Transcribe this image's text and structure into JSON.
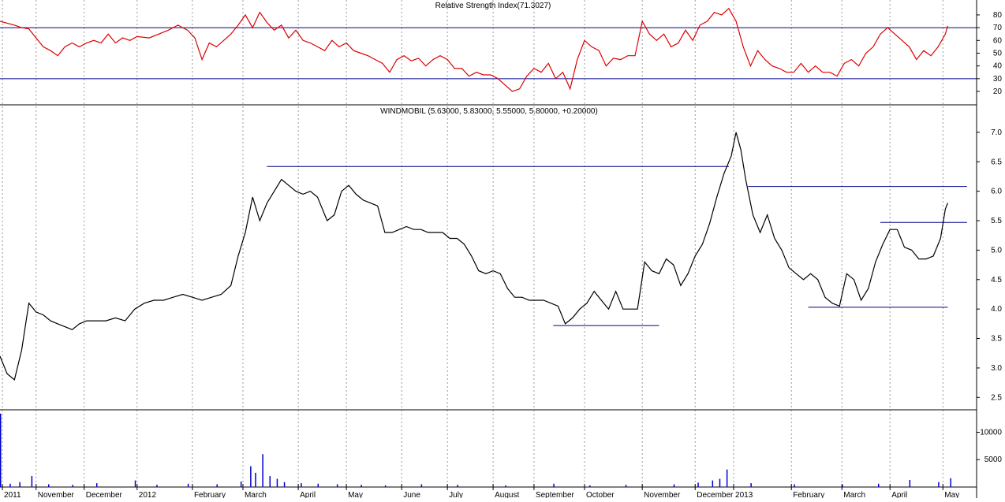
{
  "chart_data": [
    {
      "type": "line",
      "title": "Relative Strength Index(71.3027)",
      "xlim": [
        0,
        406
      ],
      "ylim": [
        9.5,
        91.7
      ],
      "yticks": [
        20,
        30,
        40,
        50,
        60,
        70,
        80
      ],
      "levels": [
        30,
        70
      ],
      "level_color": "#00008b",
      "x": [
        0,
        6,
        9,
        12,
        15,
        18,
        21,
        24,
        27,
        30,
        33,
        36,
        39,
        42,
        45,
        48,
        51,
        54,
        57,
        62,
        66,
        70,
        74,
        78,
        81,
        84,
        87,
        90,
        93,
        96,
        99,
        102,
        105,
        108,
        111,
        114,
        117,
        120,
        123,
        126,
        129,
        132,
        135,
        138,
        141,
        144,
        147,
        150,
        153,
        156,
        159,
        162,
        165,
        168,
        171,
        174,
        177,
        180,
        183,
        186,
        189,
        192,
        195,
        198,
        201,
        204,
        207,
        210,
        213,
        216,
        219,
        222,
        225,
        228,
        231,
        234,
        237,
        240,
        243,
        246,
        249,
        252,
        255,
        258,
        261,
        264,
        267,
        270,
        273,
        276,
        279,
        282,
        285,
        288,
        291,
        294,
        297,
        300,
        303,
        306,
        309,
        312,
        315,
        318,
        321,
        324,
        327,
        330,
        333,
        336,
        339,
        342,
        345,
        348,
        351,
        354,
        357,
        360,
        363,
        366,
        369,
        372,
        375,
        378,
        381,
        384,
        387,
        390,
        393,
        394
      ],
      "series": [
        {
          "color": "#dd0000",
          "values": [
            75,
            72,
            70,
            69,
            62,
            55,
            52,
            48,
            55,
            58,
            55,
            58,
            60,
            58,
            65,
            58,
            62,
            60,
            63,
            62,
            65,
            68,
            72,
            68,
            62,
            45,
            58,
            55,
            60,
            65,
            72,
            80,
            70,
            82,
            74,
            68,
            72,
            62,
            68,
            60,
            58,
            55,
            52,
            60,
            55,
            58,
            52,
            50,
            48,
            45,
            42,
            35,
            45,
            48,
            44,
            46,
            40,
            45,
            48,
            45,
            38,
            38,
            32,
            35,
            33,
            33,
            30,
            25,
            20,
            22,
            32,
            38,
            35,
            42,
            30,
            35,
            22,
            45,
            60,
            55,
            52,
            40,
            46,
            45,
            48,
            48,
            75,
            65,
            60,
            65,
            55,
            58,
            68,
            60,
            72,
            75,
            82,
            80,
            85,
            75,
            55,
            40,
            52,
            45,
            40,
            38,
            35,
            35,
            42,
            35,
            40,
            35,
            35,
            32,
            42,
            45,
            40,
            50,
            55,
            65,
            70,
            65,
            60,
            55,
            45,
            52,
            48,
            55,
            65,
            71.3
          ]
        }
      ]
    },
    {
      "type": "line",
      "title": "WINDMOBIL (5.63000, 5.83000, 5.55000, 5.80000, +0.20000)",
      "xlim": [
        0,
        406
      ],
      "ylim": [
        2.29,
        7.44
      ],
      "yticks": [
        2.5,
        {
          "value": 3,
          "label": "3.0"
        },
        3.5,
        {
          "value": 4,
          "label": "4.0"
        },
        4.5,
        {
          "value": 5,
          "label": "5.0"
        },
        5.5,
        {
          "value": 6,
          "label": "6.0"
        },
        6.5,
        {
          "value": 7,
          "label": "7.0"
        }
      ],
      "level_color": "#00008b",
      "segments": [
        {
          "y": 6.42,
          "x": [
            111,
            303
          ]
        },
        {
          "y": 3.72,
          "x": [
            230,
            274
          ]
        },
        {
          "y": 6.08,
          "x": [
            311,
            402
          ]
        },
        {
          "y": 5.47,
          "x": [
            366,
            402
          ]
        },
        {
          "y": 4.03,
          "x": [
            336,
            394
          ]
        }
      ],
      "x": [
        0,
        3,
        6,
        9,
        12,
        15,
        18,
        21,
        24,
        27,
        30,
        33,
        36,
        40,
        44,
        48,
        52,
        56,
        60,
        64,
        68,
        72,
        76,
        80,
        84,
        88,
        92,
        96,
        99,
        102,
        105,
        108,
        111,
        114,
        117,
        120,
        123,
        126,
        129,
        132,
        136,
        139,
        142,
        145,
        148,
        151,
        154,
        157,
        160,
        163,
        166,
        169,
        172,
        175,
        178,
        181,
        184,
        187,
        190,
        193,
        196,
        199,
        202,
        205,
        208,
        211,
        214,
        217,
        220,
        223,
        226,
        229,
        232,
        235,
        238,
        241,
        244,
        247,
        250,
        253,
        256,
        259,
        262,
        265,
        268,
        271,
        274,
        277,
        280,
        283,
        286,
        289,
        292,
        295,
        298,
        301,
        304,
        306,
        308,
        310,
        313,
        316,
        319,
        322,
        325,
        328,
        331,
        334,
        337,
        340,
        343,
        346,
        349,
        352,
        355,
        358,
        361,
        364,
        367,
        370,
        373,
        376,
        379,
        382,
        385,
        388,
        391,
        393,
        394
      ],
      "series": [
        {
          "color": "#000000",
          "values": [
            3.2,
            2.9,
            2.8,
            3.3,
            4.1,
            3.95,
            3.9,
            3.8,
            3.75,
            3.7,
            3.65,
            3.75,
            3.8,
            3.8,
            3.8,
            3.85,
            3.8,
            4.0,
            4.1,
            4.15,
            4.15,
            4.2,
            4.25,
            4.2,
            4.15,
            4.2,
            4.25,
            4.4,
            4.9,
            5.3,
            5.9,
            5.5,
            5.8,
            6.0,
            6.2,
            6.1,
            6.0,
            5.95,
            6.0,
            5.9,
            5.5,
            5.6,
            6.0,
            6.1,
            5.95,
            5.85,
            5.8,
            5.75,
            5.3,
            5.3,
            5.35,
            5.4,
            5.35,
            5.35,
            5.3,
            5.3,
            5.3,
            5.2,
            5.2,
            5.1,
            4.9,
            4.65,
            4.6,
            4.65,
            4.6,
            4.35,
            4.2,
            4.2,
            4.15,
            4.15,
            4.15,
            4.1,
            4.05,
            3.75,
            3.85,
            4.0,
            4.1,
            4.3,
            4.15,
            4.0,
            4.3,
            4.0,
            4.0,
            4.0,
            4.8,
            4.65,
            4.6,
            4.85,
            4.75,
            4.4,
            4.6,
            4.9,
            5.1,
            5.45,
            5.9,
            6.3,
            6.6,
            7.0,
            6.7,
            6.2,
            5.6,
            5.3,
            5.6,
            5.2,
            5.0,
            4.7,
            4.6,
            4.5,
            4.6,
            4.5,
            4.2,
            4.1,
            4.05,
            4.6,
            4.5,
            4.15,
            4.35,
            4.8,
            5.1,
            5.35,
            5.35,
            5.05,
            5.0,
            4.85,
            4.85,
            4.9,
            5.2,
            5.7,
            5.8
          ]
        }
      ]
    },
    {
      "type": "bar",
      "xlim": [
        0,
        406
      ],
      "ylim": [
        0,
        14100
      ],
      "yticks": [
        5000,
        10000
      ],
      "xticks": [
        {
          "value": 1,
          "label": "2011"
        },
        {
          "value": 15,
          "label": "November"
        },
        {
          "value": 35,
          "label": "December"
        },
        {
          "value": 57,
          "label": "2012"
        },
        {
          "value": 80,
          "label": "February"
        },
        {
          "value": 101,
          "label": "March"
        },
        {
          "value": 124,
          "label": "April"
        },
        {
          "value": 144,
          "label": "May"
        },
        {
          "value": 167,
          "label": "June"
        },
        {
          "value": 186,
          "label": "July"
        },
        {
          "value": 205,
          "label": "August"
        },
        {
          "value": 222,
          "label": "September"
        },
        {
          "value": 243,
          "label": "October"
        },
        {
          "value": 267,
          "label": "November"
        },
        {
          "value": 289,
          "label": "December"
        },
        {
          "value": 305,
          "label": "2013"
        },
        {
          "value": 329,
          "label": "February"
        },
        {
          "value": 350,
          "label": "March"
        },
        {
          "value": 370,
          "label": "April"
        },
        {
          "value": 392,
          "label": "May"
        }
      ],
      "x": [
        0,
        4,
        8,
        13,
        20,
        30,
        40,
        56,
        65,
        78,
        90,
        100,
        104,
        106,
        109,
        112,
        115,
        118,
        125,
        132,
        140,
        150,
        160,
        175,
        190,
        210,
        230,
        245,
        260,
        280,
        290,
        296,
        299,
        302,
        312,
        330,
        350,
        365,
        378,
        390,
        395
      ],
      "series": [
        {
          "color": "#0000cc",
          "values": [
            13400,
            600,
            900,
            2000,
            500,
            400,
            700,
            1200,
            400,
            600,
            500,
            1000,
            3800,
            2600,
            6000,
            2000,
            1500,
            900,
            700,
            600,
            500,
            400,
            300,
            500,
            400,
            300,
            600,
            300,
            400,
            500,
            800,
            1200,
            1500,
            3200,
            700,
            500,
            400,
            600,
            1300,
            900,
            1600
          ]
        }
      ]
    }
  ]
}
